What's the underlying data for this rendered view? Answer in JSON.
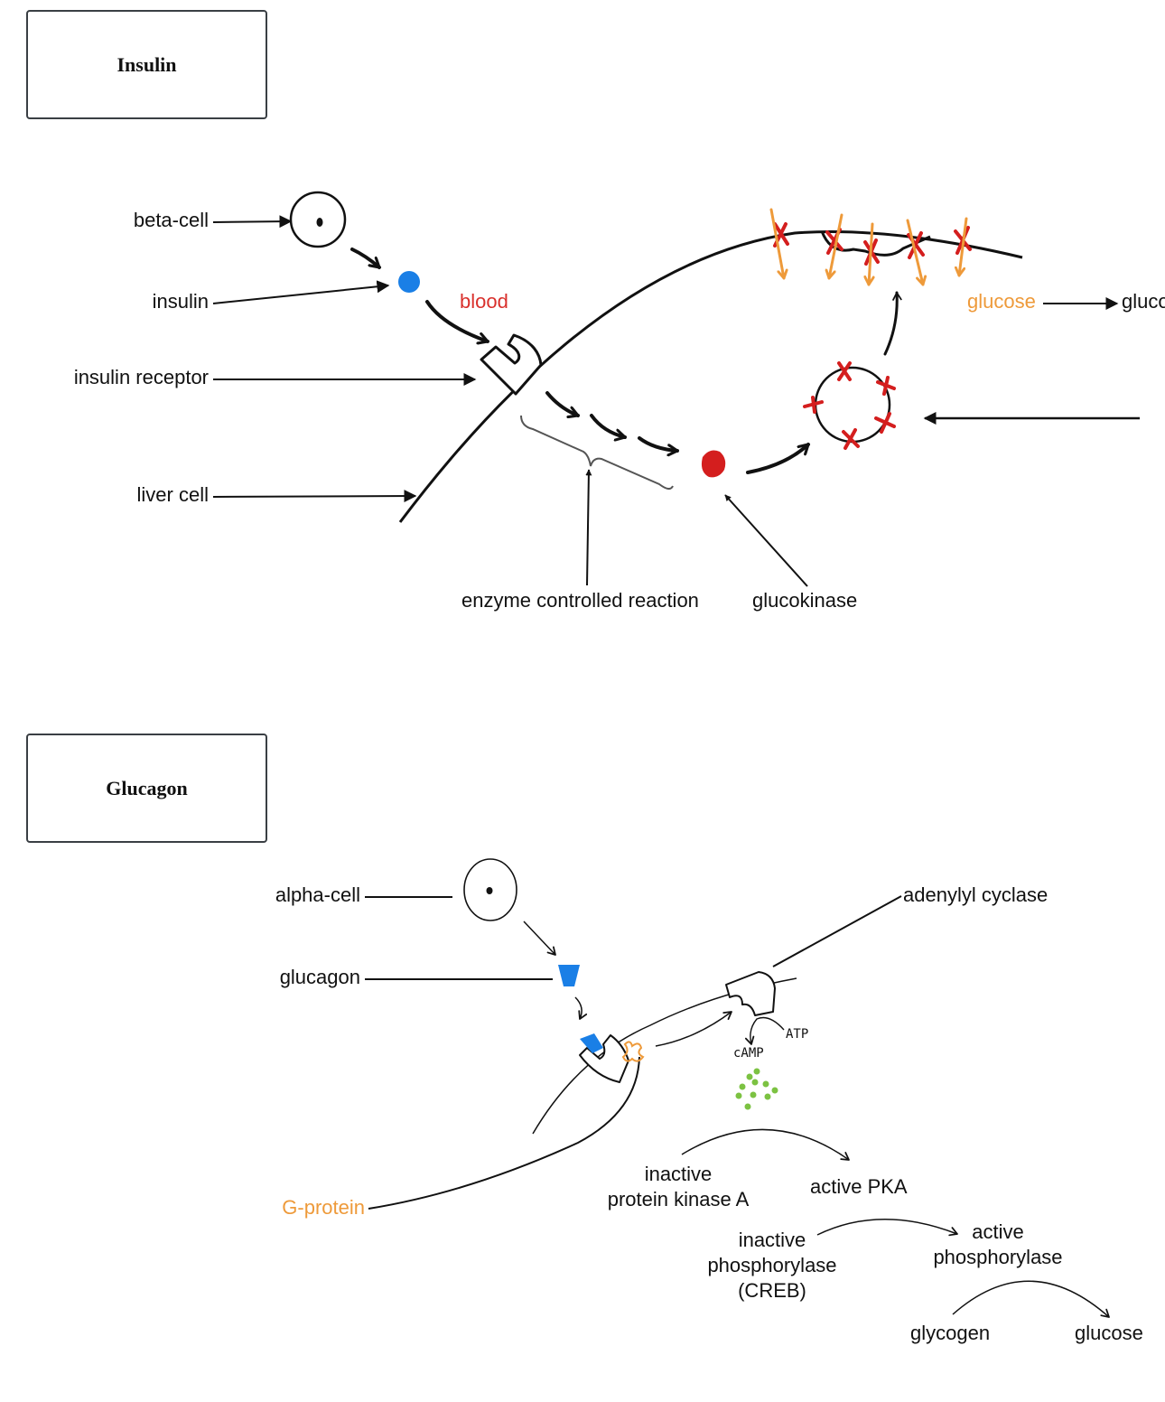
{
  "colors": {
    "accent_blue": "#1a7fe6",
    "blood_red": "#d9302c",
    "glucose_orange": "#ee9a3a",
    "camp_green": "#7cc242",
    "ink": "#111111"
  },
  "insulin_section": {
    "title": "Insulin",
    "labels": {
      "beta_cell": "beta-cell",
      "insulin": "insulin",
      "insulin_receptor": "insulin receptor",
      "liver_cell": "liver cell",
      "blood": "blood",
      "glucose": "glucose",
      "glucose_cut": "gluco",
      "enzyme_controlled_reaction": "enzyme controlled reaction",
      "glucokinase": "glucokinase"
    }
  },
  "glucagon_section": {
    "title": "Glucagon",
    "labels": {
      "alpha_cell": "alpha-cell",
      "glucagon": "glucagon",
      "adenylyl_cyclase": "adenylyl cyclase",
      "atp": "ATP",
      "camp": "cAMP",
      "g_protein": "G-protein",
      "inactive_pka": "inactive\nprotein kinase A",
      "active_pka": "active PKA",
      "inactive_phosphorylase": "inactive\nphosphorylase\n(CREB)",
      "active_phosphorylase": "active\nphosphorylase",
      "glycogen": "glycogen",
      "glucose": "glucose"
    }
  }
}
